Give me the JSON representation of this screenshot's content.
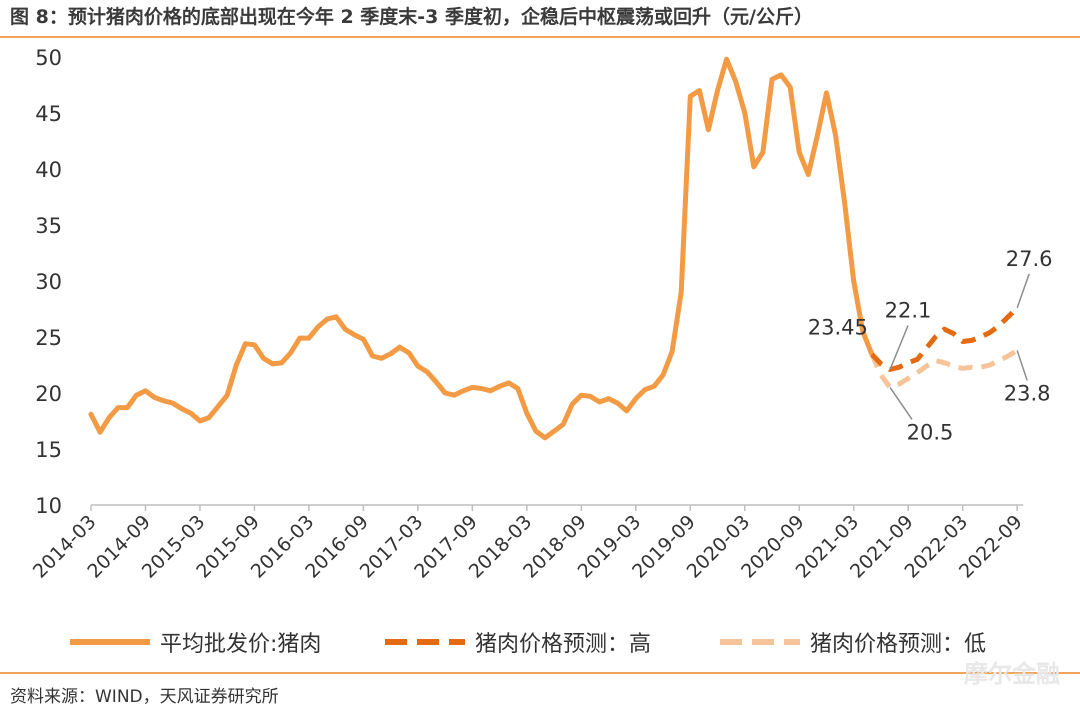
{
  "title": "图 8：预计猪肉价格的底部出现在今年 2 季度末-3 季度初，企稳后中枢震荡或回升（元/公斤）",
  "source": "资料来源：WIND，天风证券研究所",
  "watermark": "摩尔金融",
  "colors": {
    "actual": "#f39a44",
    "forecast_high": "#e46b12",
    "forecast_low": "#f7c49a",
    "rule": "#f0a35c"
  },
  "chart_data": {
    "type": "line",
    "ylim": [
      10,
      50
    ],
    "y_ticks": [
      10,
      15,
      20,
      25,
      30,
      35,
      40,
      45,
      50
    ],
    "x_tick_labels": [
      "2014-03",
      "2014-09",
      "2015-03",
      "2015-09",
      "2016-03",
      "2016-09",
      "2017-03",
      "2017-09",
      "2018-03",
      "2018-09",
      "2019-03",
      "2019-09",
      "2020-03",
      "2020-09",
      "2021-03",
      "2021-09",
      "2022-03",
      "2022-09"
    ],
    "x_start": "2014-03",
    "legend": [
      "平均批发价:猪肉",
      "猪肉价格预测：高",
      "猪肉价格预测：低"
    ],
    "series": [
      {
        "name": "平均批发价:猪肉",
        "style": "solid",
        "values": [
          18.1,
          16.5,
          17.8,
          18.7,
          18.7,
          19.8,
          20.2,
          19.6,
          19.3,
          19.1,
          18.6,
          18.2,
          17.5,
          17.8,
          18.8,
          19.8,
          22.5,
          24.4,
          24.3,
          23.1,
          22.6,
          22.7,
          23.6,
          24.9,
          24.9,
          25.9,
          26.6,
          26.8,
          25.7,
          25.2,
          24.8,
          23.3,
          23.1,
          23.5,
          24.1,
          23.6,
          22.4,
          21.9,
          21.0,
          20.0,
          19.8,
          20.2,
          20.5,
          20.4,
          20.2,
          20.6,
          20.9,
          20.4,
          18.2,
          16.6,
          16.0,
          16.6,
          17.2,
          19.0,
          19.8,
          19.7,
          19.2,
          19.5,
          19.1,
          18.4,
          19.5,
          20.3,
          20.6,
          21.6,
          23.7,
          29.0,
          46.5,
          47.0,
          43.5,
          47.0,
          49.8,
          47.8,
          45.0,
          40.2,
          41.5,
          48.0,
          48.4,
          47.3,
          41.5,
          39.5,
          43.0,
          46.8,
          43.0,
          37.0,
          30.0,
          25.5,
          23.45
        ]
      },
      {
        "name": "猪肉价格预测：高",
        "style": "dashed",
        "values": [
          [
            86,
            23.45
          ],
          [
            87,
            22.6
          ],
          [
            88,
            22.1
          ],
          [
            89,
            22.3
          ],
          [
            90,
            22.7
          ],
          [
            91,
            23.0
          ],
          [
            92,
            24.0
          ],
          [
            93,
            25.0
          ],
          [
            94,
            25.7
          ],
          [
            95,
            25.3
          ],
          [
            96,
            24.6
          ],
          [
            97,
            24.7
          ],
          [
            98,
            25.0
          ],
          [
            99,
            25.4
          ],
          [
            100,
            26.0
          ],
          [
            101,
            26.8
          ],
          [
            102,
            27.6
          ]
        ]
      },
      {
        "name": "猪肉价格预测：低",
        "style": "dashed",
        "values": [
          [
            86,
            23.45
          ],
          [
            87,
            21.6
          ],
          [
            88,
            20.5
          ],
          [
            89,
            20.8
          ],
          [
            90,
            21.3
          ],
          [
            91,
            21.8
          ],
          [
            92,
            22.4
          ],
          [
            93,
            22.9
          ],
          [
            94,
            22.7
          ],
          [
            95,
            22.4
          ],
          [
            96,
            22.2
          ],
          [
            97,
            22.3
          ],
          [
            98,
            22.3
          ],
          [
            99,
            22.5
          ],
          [
            100,
            22.9
          ],
          [
            101,
            23.3
          ],
          [
            102,
            23.8
          ]
        ]
      }
    ],
    "annotations": [
      {
        "text": "23.45",
        "index": 86,
        "value": 23.45
      },
      {
        "text": "22.1",
        "index": 88,
        "value": 22.1
      },
      {
        "text": "20.5",
        "index": 88,
        "value": 20.5
      },
      {
        "text": "27.6",
        "index": 102,
        "value": 27.6
      },
      {
        "text": "23.8",
        "index": 102,
        "value": 23.8
      }
    ]
  }
}
